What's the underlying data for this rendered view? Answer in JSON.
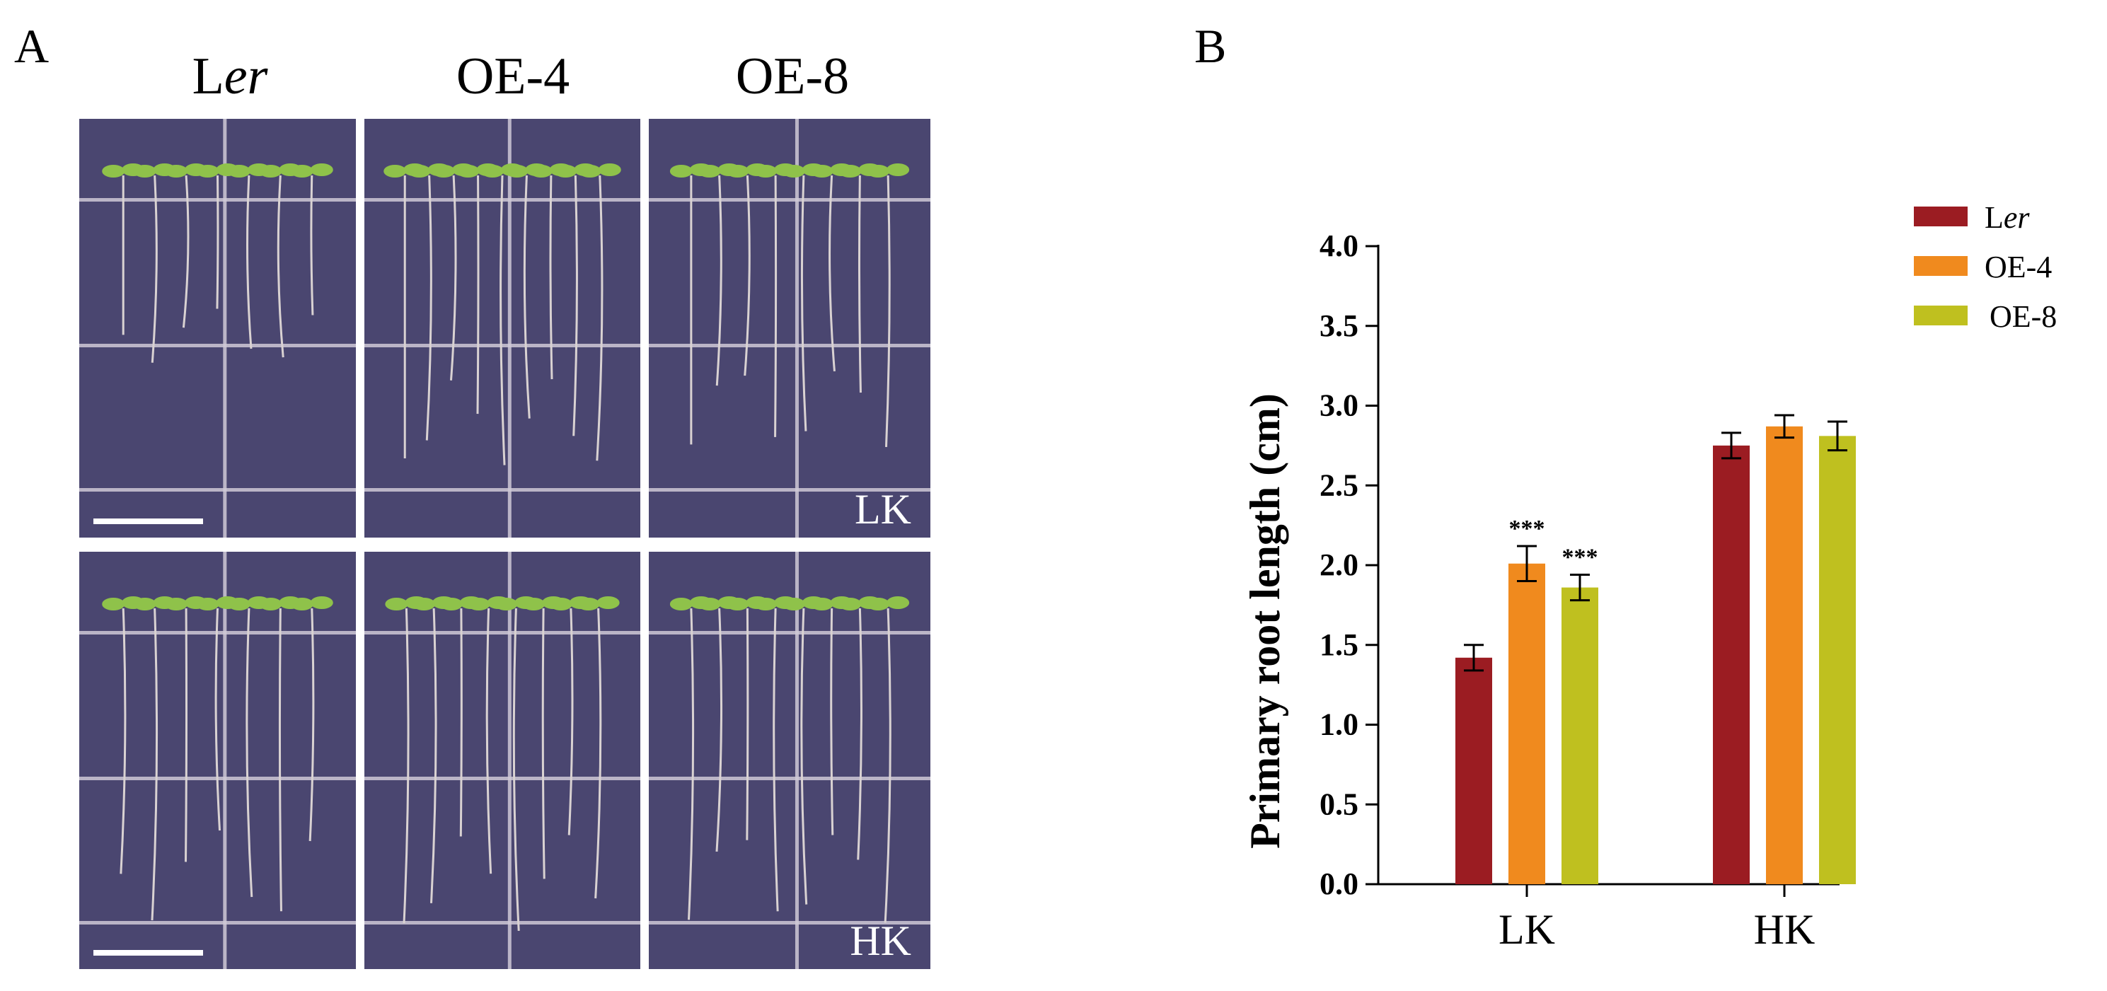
{
  "panel_a": {
    "label": "A",
    "columns": [
      {
        "prefix": "L",
        "italic_suffix": "er"
      },
      {
        "prefix": "OE-4",
        "italic_suffix": ""
      },
      {
        "prefix": "OE-8",
        "italic_suffix": ""
      }
    ],
    "rows": [
      {
        "condition": "LK",
        "seedlings_per_plate": [
          7,
          9,
          8
        ],
        "root_length_fraction": [
          0.55,
          0.85,
          0.8
        ]
      },
      {
        "condition": "HK",
        "seedlings_per_plate": [
          7,
          8,
          8
        ],
        "root_length_fraction": [
          0.92,
          0.95,
          0.93
        ]
      }
    ],
    "colors": {
      "plate": "#4a4670",
      "grid": "#cfc9d6",
      "leaf": "#8fc24a",
      "root": "#d9d2d2"
    }
  },
  "panel_b": {
    "label": "B",
    "chart_data": {
      "type": "bar",
      "categories": [
        "LK",
        "HK"
      ],
      "series": [
        {
          "name_prefix": "L",
          "name_italic": "er",
          "color": "#9b1c22",
          "values": [
            1.42,
            2.75
          ],
          "errors": [
            0.08,
            0.08
          ],
          "sig": [
            "",
            ""
          ]
        },
        {
          "name_prefix": "OE-4",
          "name_italic": "",
          "color": "#f08a1e",
          "values": [
            2.01,
            2.87
          ],
          "errors": [
            0.11,
            0.07
          ],
          "sig": [
            "***",
            ""
          ]
        },
        {
          "name_prefix": "OE-8",
          "name_italic": "",
          "color": "#bfc01f",
          "values": [
            1.86,
            2.81
          ],
          "errors": [
            0.08,
            0.09
          ],
          "sig": [
            "***",
            ""
          ]
        }
      ],
      "title": "",
      "xlabel": "",
      "ylabel": "Primary root length (cm)",
      "ylim": [
        0,
        4.0
      ],
      "yticks": [
        "0.0",
        "0.5",
        "1.0",
        "1.5",
        "2.0",
        "2.5",
        "3.0",
        "3.5",
        "4.0"
      ],
      "grid": false,
      "legend_position": "top-right"
    }
  }
}
